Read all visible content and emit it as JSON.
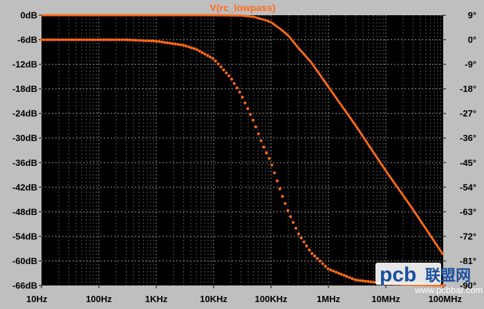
{
  "chart_data": {
    "type": "line",
    "title": "V(rc_lowpass)",
    "x_scale": "log",
    "xlim": [
      10,
      100000000
    ],
    "x_ticks": [
      {
        "value": 10,
        "label": "10Hz"
      },
      {
        "value": 100,
        "label": "100Hz"
      },
      {
        "value": 1000,
        "label": "1KHz"
      },
      {
        "value": 10000,
        "label": "10KHz"
      },
      {
        "value": 100000,
        "label": "100KHz"
      },
      {
        "value": 1000000,
        "label": "1MHz"
      },
      {
        "value": 10000000,
        "label": "10MHz"
      },
      {
        "value": 100000000,
        "label": "100MHz"
      }
    ],
    "ylim_left": [
      -66,
      0
    ],
    "y_ticks_left": [
      "0dB",
      "-6dB",
      "-12dB",
      "-18dB",
      "-24dB",
      "-30dB",
      "-36dB",
      "-42dB",
      "-48dB",
      "-54dB",
      "-60dB",
      "-66dB"
    ],
    "y_values_left": [
      0,
      -6,
      -12,
      -18,
      -24,
      -30,
      -36,
      -42,
      -48,
      -54,
      -60,
      -66
    ],
    "ylim_right": [
      -90,
      9
    ],
    "y_ticks_right": [
      "9°",
      "0°",
      "-9°",
      "-18°",
      "-27°",
      "-36°",
      "-45°",
      "-54°",
      "-63°",
      "-72°",
      "-81°",
      "-90°"
    ],
    "y_values_right": [
      9,
      0,
      -9,
      -18,
      -27,
      -36,
      -45,
      -54,
      -63,
      -72,
      -81,
      -90
    ],
    "grid": true,
    "series": [
      {
        "axis": "left",
        "style": "solid",
        "color": "#ff6a1a",
        "points": [
          [
            10,
            0
          ],
          [
            1000,
            0
          ],
          [
            10000,
            0
          ],
          [
            30000,
            -0.1
          ],
          [
            50000,
            -0.4
          ],
          [
            80000,
            -1.2
          ],
          [
            100000,
            -1.7
          ],
          [
            150000,
            -3.5
          ],
          [
            200000,
            -5.0
          ],
          [
            300000,
            -8.0
          ],
          [
            500000,
            -11.5
          ],
          [
            1000000,
            -17.5
          ],
          [
            3000000,
            -27.0
          ],
          [
            10000000,
            -38.0
          ],
          [
            30000000,
            -47.5
          ],
          [
            100000000,
            -58.5
          ]
        ]
      },
      {
        "axis": "right",
        "style": "dotted",
        "color": "#ff6a1a",
        "points": [
          [
            10,
            0
          ],
          [
            300,
            0
          ],
          [
            1000,
            -0.5
          ],
          [
            3000,
            -2
          ],
          [
            5000,
            -3.5
          ],
          [
            10000,
            -7
          ],
          [
            20000,
            -14
          ],
          [
            30000,
            -20
          ],
          [
            50000,
            -30
          ],
          [
            70000,
            -38
          ],
          [
            100000,
            -45
          ],
          [
            150000,
            -56
          ],
          [
            200000,
            -63
          ],
          [
            300000,
            -71
          ],
          [
            500000,
            -78
          ],
          [
            1000000,
            -84
          ],
          [
            3000000,
            -88
          ],
          [
            10000000,
            -89.3
          ],
          [
            100000000,
            -90
          ]
        ]
      }
    ]
  },
  "watermark": {
    "logo_text": "pcb",
    "cn_text": "联盟网",
    "url_text": "www.pcbbar.com",
    "brand_color": "#1a4fa0"
  }
}
